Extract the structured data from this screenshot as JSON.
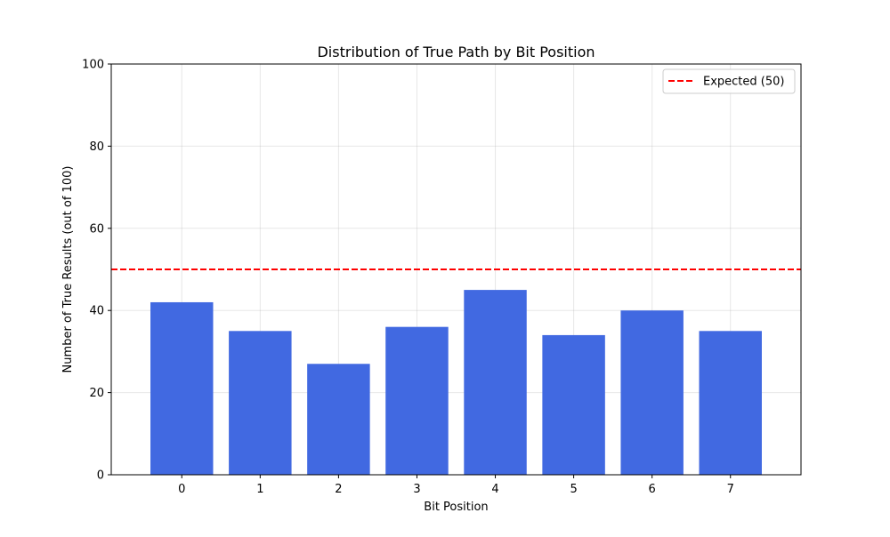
{
  "chart_data": {
    "type": "bar",
    "title": "Distribution of True Path by Bit Position",
    "xlabel": "Bit Position",
    "ylabel": "Number of True Results (out of 100)",
    "categories": [
      "0",
      "1",
      "2",
      "3",
      "4",
      "5",
      "6",
      "7"
    ],
    "values": [
      42,
      35,
      27,
      36,
      45,
      34,
      40,
      35
    ],
    "ylim": [
      0,
      100
    ],
    "yticks": [
      "0",
      "20",
      "40",
      "60",
      "80",
      "100"
    ],
    "grid": true,
    "bar_color": "#4169E1",
    "reference_line": {
      "label": "Expected (50)",
      "value": 50,
      "color": "#FF0000",
      "style": "dashed"
    },
    "legend_position": "top-right"
  }
}
